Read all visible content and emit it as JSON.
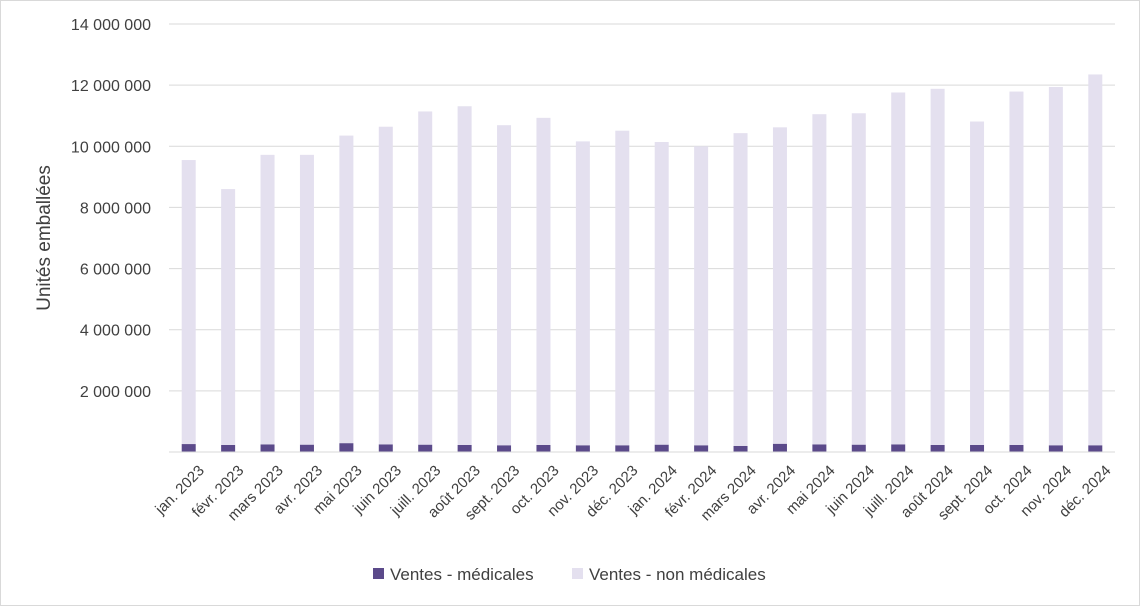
{
  "chart_data": {
    "type": "bar",
    "stacked": true,
    "ylabel": "Unités emballées",
    "xlabel": "",
    "ylim": [
      0,
      14000000
    ],
    "yticks": [
      {
        "value": 2000000,
        "label": "2 000 000"
      },
      {
        "value": 4000000,
        "label": "4 000 000"
      },
      {
        "value": 6000000,
        "label": "6 000 000"
      },
      {
        "value": 8000000,
        "label": "8 000 000"
      },
      {
        "value": 10000000,
        "label": "10 000 000"
      },
      {
        "value": 12000000,
        "label": "12 000 000"
      },
      {
        "value": 14000000,
        "label": "14 000 000"
      }
    ],
    "grid": true,
    "legend_position": "bottom",
    "categories": [
      "jan. 2023",
      "févr. 2023",
      "mars 2023",
      "avr. 2023",
      "mai 2023",
      "juin 2023",
      "juill. 2023",
      "août 2023",
      "sept. 2023",
      "oct. 2023",
      "nov. 2023",
      "déc. 2023",
      "jan. 2024",
      "févr. 2024",
      "mars 2024",
      "avr. 2024",
      "mai 2024",
      "juin 2024",
      "juill. 2024",
      "août 2024",
      "sept. 2024",
      "oct. 2024",
      "nov. 2024",
      "déc. 2024"
    ],
    "series": [
      {
        "name": "Ventes - médicales",
        "color": "#5b4a8a",
        "values": [
          260000,
          230000,
          250000,
          240000,
          290000,
          250000,
          240000,
          230000,
          220000,
          230000,
          220000,
          220000,
          240000,
          220000,
          200000,
          270000,
          250000,
          240000,
          250000,
          230000,
          230000,
          230000,
          220000,
          220000
        ]
      },
      {
        "name": "Ventes - non médicales",
        "color": "#e4e0ef",
        "values": [
          9290000,
          8370000,
          9470000,
          9480000,
          10060000,
          10390000,
          10900000,
          11080000,
          10470000,
          10700000,
          9940000,
          10290000,
          9900000,
          9780000,
          10230000,
          10350000,
          10800000,
          10840000,
          11510000,
          11650000,
          10580000,
          11560000,
          11720000,
          12130000
        ]
      }
    ]
  }
}
